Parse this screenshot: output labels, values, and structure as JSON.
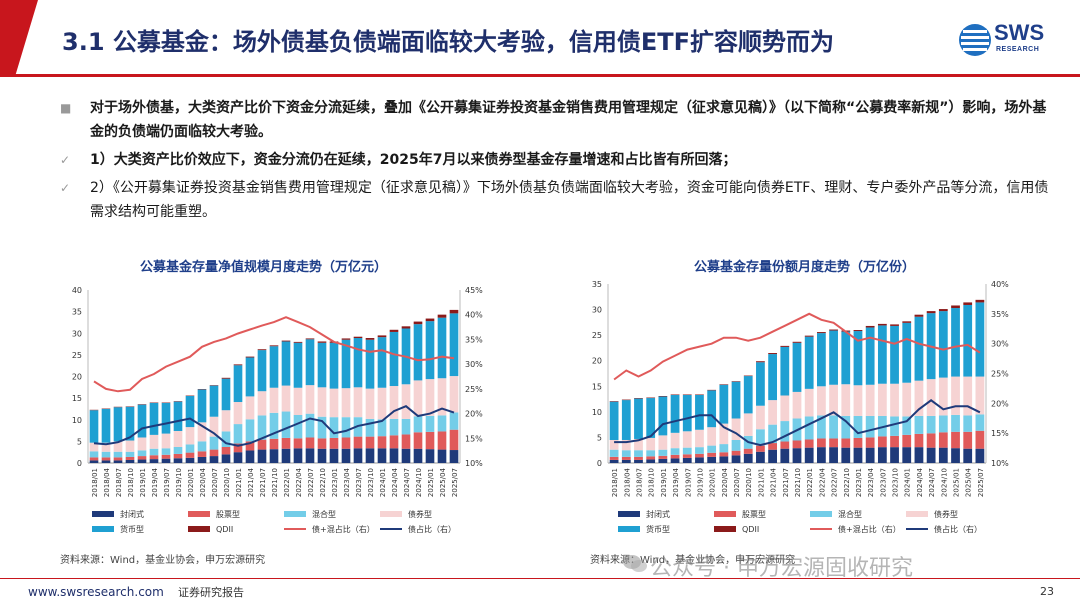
{
  "header": {
    "title": "3.1 公募基金：场外债基负债端面临较大考验，信用债ETF扩容顺势而为",
    "logo_text": "SWS",
    "logo_sub": "RESEARCH"
  },
  "bullets": [
    {
      "marker": "■",
      "text": "对于场外债基，大类资产比价下资金分流延续，叠加《公开募集证券投资基金销售费用管理规定（征求意见稿）》（以下简称“公募费率新规”）影响，场外基金的负债端仍面临较大考验。"
    },
    {
      "marker": "✓",
      "text": "1）大类资产比价效应下，资金分流仍在延续，2025年7月以来债券型基金存量增速和占比皆有所回落；"
    },
    {
      "marker": "✓",
      "text": "2）《公开募集证券投资基金销售费用管理规定（征求意见稿）》下场外债基负债端面临较大考验，资金可能向债券ETF、理财、专户委外产品等分流，信用债需求结构可能重塑。"
    }
  ],
  "charts": {
    "left": {
      "title": "公募基金存量净值规模月度走势（万亿元）",
      "source": "资料来源：Wind，基金业协会，申万宏源研究"
    },
    "right": {
      "title": "公募基金存量份额月度走势（万亿份）",
      "source": "资料来源：Wind，基金业协会，申万宏源研究"
    }
  },
  "chart_data": [
    {
      "type": "bar",
      "title": "公募基金存量净值规模月度走势（万亿元）",
      "categories": [
        "2018/01",
        "2018/04",
        "2018/07",
        "2018/10",
        "2019/01",
        "2019/04",
        "2019/07",
        "2019/10",
        "2020/01",
        "2020/04",
        "2020/07",
        "2020/10",
        "2021/01",
        "2021/04",
        "2021/07",
        "2021/10",
        "2022/01",
        "2022/04",
        "2022/07",
        "2022/10",
        "2023/01",
        "2023/04",
        "2023/07",
        "2023/10",
        "2024/01",
        "2024/04",
        "2024/07",
        "2024/10",
        "2025/01",
        "2025/04",
        "2025/07"
      ],
      "ylim": [
        0,
        40
      ],
      "y2lim": [
        10,
        45
      ],
      "yticks": [
        0,
        5,
        10,
        15,
        20,
        25,
        30,
        35,
        40
      ],
      "y2ticks": [
        "10%",
        "15%",
        "20%",
        "25%",
        "30%",
        "35%",
        "40%",
        "45%"
      ],
      "stack_order": [
        "封闭式",
        "股票型",
        "混合型",
        "债券型",
        "货币型",
        "QDII"
      ],
      "series": [
        {
          "name": "封闭式",
          "color": "#1f3a7a",
          "values": [
            0.6,
            0.6,
            0.6,
            0.7,
            0.8,
            0.9,
            1.0,
            1.1,
            1.2,
            1.4,
            1.6,
            2.0,
            2.5,
            2.9,
            3.1,
            3.2,
            3.3,
            3.4,
            3.4,
            3.3,
            3.3,
            3.3,
            3.4,
            3.4,
            3.4,
            3.4,
            3.3,
            3.3,
            3.2,
            3.1,
            3.0
          ]
        },
        {
          "name": "股票型",
          "color": "#e05a5a",
          "values": [
            0.7,
            0.7,
            0.7,
            0.7,
            0.8,
            0.9,
            0.9,
            1.0,
            1.2,
            1.3,
            1.5,
            1.7,
            2.0,
            2.1,
            2.3,
            2.4,
            2.5,
            2.3,
            2.5,
            2.4,
            2.5,
            2.6,
            2.7,
            2.7,
            2.8,
            3.0,
            3.3,
            3.8,
            4.0,
            4.2,
            4.7
          ]
        },
        {
          "name": "混合型",
          "color": "#73cde8",
          "values": [
            1.4,
            1.3,
            1.3,
            1.2,
            1.3,
            1.5,
            1.5,
            1.6,
            1.9,
            2.3,
            3.0,
            3.6,
            4.5,
            5.1,
            5.6,
            6.0,
            6.1,
            5.4,
            5.5,
            5.0,
            4.8,
            4.7,
            4.5,
            4.1,
            3.9,
            3.8,
            3.6,
            3.7,
            3.7,
            3.7,
            4.0
          ]
        },
        {
          "name": "债券型",
          "color": "#f6d3d3",
          "values": [
            2.0,
            2.1,
            2.4,
            2.6,
            3.0,
            3.2,
            3.4,
            3.7,
            4.0,
            4.4,
            4.6,
            4.9,
            5.1,
            5.3,
            5.6,
            5.8,
            6.0,
            6.3,
            6.6,
            6.8,
            6.6,
            6.7,
            6.9,
            7.0,
            7.3,
            7.6,
            8.0,
            8.3,
            8.5,
            8.6,
            8.4
          ]
        },
        {
          "name": "货币型",
          "color": "#1fa0d2",
          "values": [
            7.5,
            7.8,
            7.9,
            7.8,
            7.6,
            7.4,
            7.1,
            6.8,
            7.2,
            7.6,
            7.2,
            7.3,
            8.5,
            9.0,
            9.5,
            9.6,
            10.2,
            10.4,
            10.6,
            10.3,
            10.6,
            11.2,
            11.4,
            11.3,
            11.7,
            12.5,
            12.9,
            13.0,
            13.4,
            14.0,
            14.5
          ]
        },
        {
          "name": "QDII",
          "color": "#8b1a1a",
          "values": [
            0.1,
            0.1,
            0.1,
            0.1,
            0.1,
            0.1,
            0.1,
            0.1,
            0.1,
            0.1,
            0.1,
            0.2,
            0.2,
            0.2,
            0.2,
            0.2,
            0.2,
            0.2,
            0.2,
            0.3,
            0.3,
            0.3,
            0.3,
            0.4,
            0.4,
            0.5,
            0.5,
            0.6,
            0.6,
            0.7,
            0.8
          ]
        },
        {
          "name": "债+混占比（右）",
          "type": "line",
          "axis": "right",
          "color": "#e05a5a",
          "values": [
            26.5,
            25.0,
            24.5,
            24.8,
            27.0,
            28.0,
            29.5,
            30.5,
            31.5,
            33.5,
            34.5,
            35.2,
            36.2,
            37.0,
            37.8,
            38.5,
            39.5,
            38.5,
            37.5,
            36.0,
            34.5,
            33.8,
            33.0,
            32.5,
            32.8,
            32.0,
            31.5,
            30.8,
            31.0,
            31.5,
            31.2
          ]
        },
        {
          "name": "债占比（右）",
          "type": "line",
          "axis": "right",
          "color": "#1f3a7a",
          "values": [
            14.0,
            13.8,
            14.2,
            15.2,
            17.0,
            17.5,
            18.0,
            18.5,
            19.0,
            17.5,
            16.0,
            14.0,
            13.5,
            14.0,
            15.0,
            16.0,
            17.0,
            18.0,
            19.0,
            18.5,
            16.0,
            16.5,
            17.5,
            18.0,
            18.5,
            20.5,
            21.5,
            19.5,
            20.0,
            21.0,
            20.2
          ]
        }
      ],
      "legend": [
        "封闭式",
        "股票型",
        "混合型",
        "债券型",
        "货币型",
        "QDII",
        "债+混占比（右）",
        "债占比（右）"
      ]
    },
    {
      "type": "bar",
      "title": "公募基金存量份额月度走势（万亿份）",
      "categories": [
        "2018/01",
        "2018/04",
        "2018/07",
        "2018/10",
        "2019/01",
        "2019/04",
        "2019/07",
        "2019/10",
        "2020/01",
        "2020/04",
        "2020/07",
        "2020/10",
        "2021/01",
        "2021/04",
        "2021/07",
        "2021/10",
        "2022/01",
        "2022/04",
        "2022/07",
        "2022/10",
        "2023/01",
        "2023/04",
        "2023/07",
        "2023/10",
        "2024/01",
        "2024/04",
        "2024/07",
        "2024/10",
        "2025/01",
        "2025/04",
        "2025/07"
      ],
      "ylim": [
        0,
        35
      ],
      "y2lim": [
        10,
        40
      ],
      "yticks": [
        0,
        5,
        10,
        15,
        20,
        25,
        30,
        35
      ],
      "y2ticks": [
        "10%",
        "15%",
        "20%",
        "25%",
        "30%",
        "35%",
        "40%"
      ],
      "stack_order": [
        "封闭式",
        "股票型",
        "混合型",
        "债券型",
        "货币型",
        "QDII"
      ],
      "series": [
        {
          "name": "封闭式",
          "color": "#1f3a7a",
          "values": [
            0.6,
            0.6,
            0.6,
            0.7,
            0.8,
            0.9,
            1.0,
            1.1,
            1.2,
            1.3,
            1.5,
            1.8,
            2.2,
            2.6,
            2.8,
            2.9,
            3.0,
            3.1,
            3.1,
            3.0,
            3.0,
            3.0,
            3.1,
            3.1,
            3.1,
            3.1,
            3.0,
            3.0,
            2.9,
            2.8,
            2.8
          ]
        },
        {
          "name": "股票型",
          "color": "#e05a5a",
          "values": [
            0.6,
            0.6,
            0.6,
            0.6,
            0.6,
            0.7,
            0.7,
            0.7,
            0.8,
            0.8,
            0.9,
            1.0,
            1.2,
            1.3,
            1.4,
            1.5,
            1.6,
            1.7,
            1.7,
            1.8,
            1.9,
            2.0,
            2.1,
            2.2,
            2.4,
            2.6,
            2.8,
            3.0,
            3.2,
            3.3,
            3.5
          ]
        },
        {
          "name": "混合型",
          "color": "#73cde8",
          "values": [
            1.4,
            1.3,
            1.3,
            1.2,
            1.2,
            1.3,
            1.3,
            1.3,
            1.4,
            1.6,
            2.1,
            2.5,
            3.2,
            3.6,
            4.0,
            4.3,
            4.5,
            4.5,
            4.5,
            4.4,
            4.3,
            4.2,
            4.0,
            3.8,
            3.6,
            3.5,
            3.4,
            3.3,
            3.3,
            3.2,
            3.2
          ]
        },
        {
          "name": "债券型",
          "color": "#f6d3d3",
          "values": [
            1.9,
            2.0,
            2.2,
            2.4,
            2.8,
            3.0,
            3.2,
            3.4,
            3.6,
            4.0,
            4.2,
            4.4,
            4.6,
            4.8,
            5.0,
            5.2,
            5.4,
            5.7,
            6.0,
            6.2,
            6.0,
            6.1,
            6.3,
            6.4,
            6.6,
            6.9,
            7.2,
            7.4,
            7.5,
            7.6,
            7.4
          ]
        },
        {
          "name": "货币型",
          "color": "#1fa0d2",
          "values": [
            7.5,
            7.8,
            7.9,
            7.8,
            7.6,
            7.4,
            7.1,
            6.8,
            7.2,
            7.6,
            7.2,
            7.3,
            8.5,
            9.0,
            9.5,
            9.6,
            10.2,
            10.4,
            10.6,
            10.3,
            10.6,
            11.2,
            11.4,
            11.3,
            11.7,
            12.5,
            12.9,
            13.0,
            13.4,
            14.0,
            14.5
          ]
        },
        {
          "name": "QDII",
          "color": "#8b1a1a",
          "values": [
            0.1,
            0.1,
            0.1,
            0.1,
            0.1,
            0.1,
            0.1,
            0.1,
            0.1,
            0.1,
            0.1,
            0.1,
            0.2,
            0.2,
            0.2,
            0.2,
            0.2,
            0.2,
            0.2,
            0.2,
            0.2,
            0.3,
            0.3,
            0.3,
            0.3,
            0.4,
            0.4,
            0.4,
            0.5,
            0.5,
            0.5
          ]
        },
        {
          "name": "债+混占比（右）",
          "type": "line",
          "axis": "right",
          "color": "#e05a5a",
          "values": [
            24.0,
            25.5,
            24.5,
            25.5,
            27.0,
            28.0,
            29.0,
            29.5,
            30.0,
            31.0,
            31.0,
            30.5,
            31.0,
            32.0,
            33.0,
            34.0,
            35.0,
            34.0,
            33.5,
            32.0,
            30.5,
            31.0,
            30.5,
            30.0,
            30.8,
            30.0,
            29.5,
            29.0,
            29.5,
            29.8,
            28.5
          ]
        },
        {
          "name": "债占比（右）",
          "type": "line",
          "axis": "right",
          "color": "#1f3a7a",
          "values": [
            13.5,
            13.5,
            13.8,
            14.5,
            16.5,
            17.0,
            17.5,
            18.0,
            18.0,
            16.0,
            15.0,
            13.5,
            13.0,
            13.5,
            14.5,
            15.5,
            16.5,
            17.5,
            18.5,
            17.0,
            15.0,
            15.5,
            16.0,
            16.5,
            17.0,
            19.0,
            20.5,
            19.0,
            19.5,
            19.5,
            18.5
          ]
        }
      ],
      "legend": [
        "封闭式",
        "股票型",
        "混合型",
        "债券型",
        "货币型",
        "QDII",
        "债+混占比（右）",
        "债占比（右）"
      ]
    }
  ],
  "footer": {
    "url": "www.swsresearch.com",
    "report_type": "证券研究报告",
    "page": "23",
    "watermark": "公众号 · 申万宏源固收研究"
  }
}
